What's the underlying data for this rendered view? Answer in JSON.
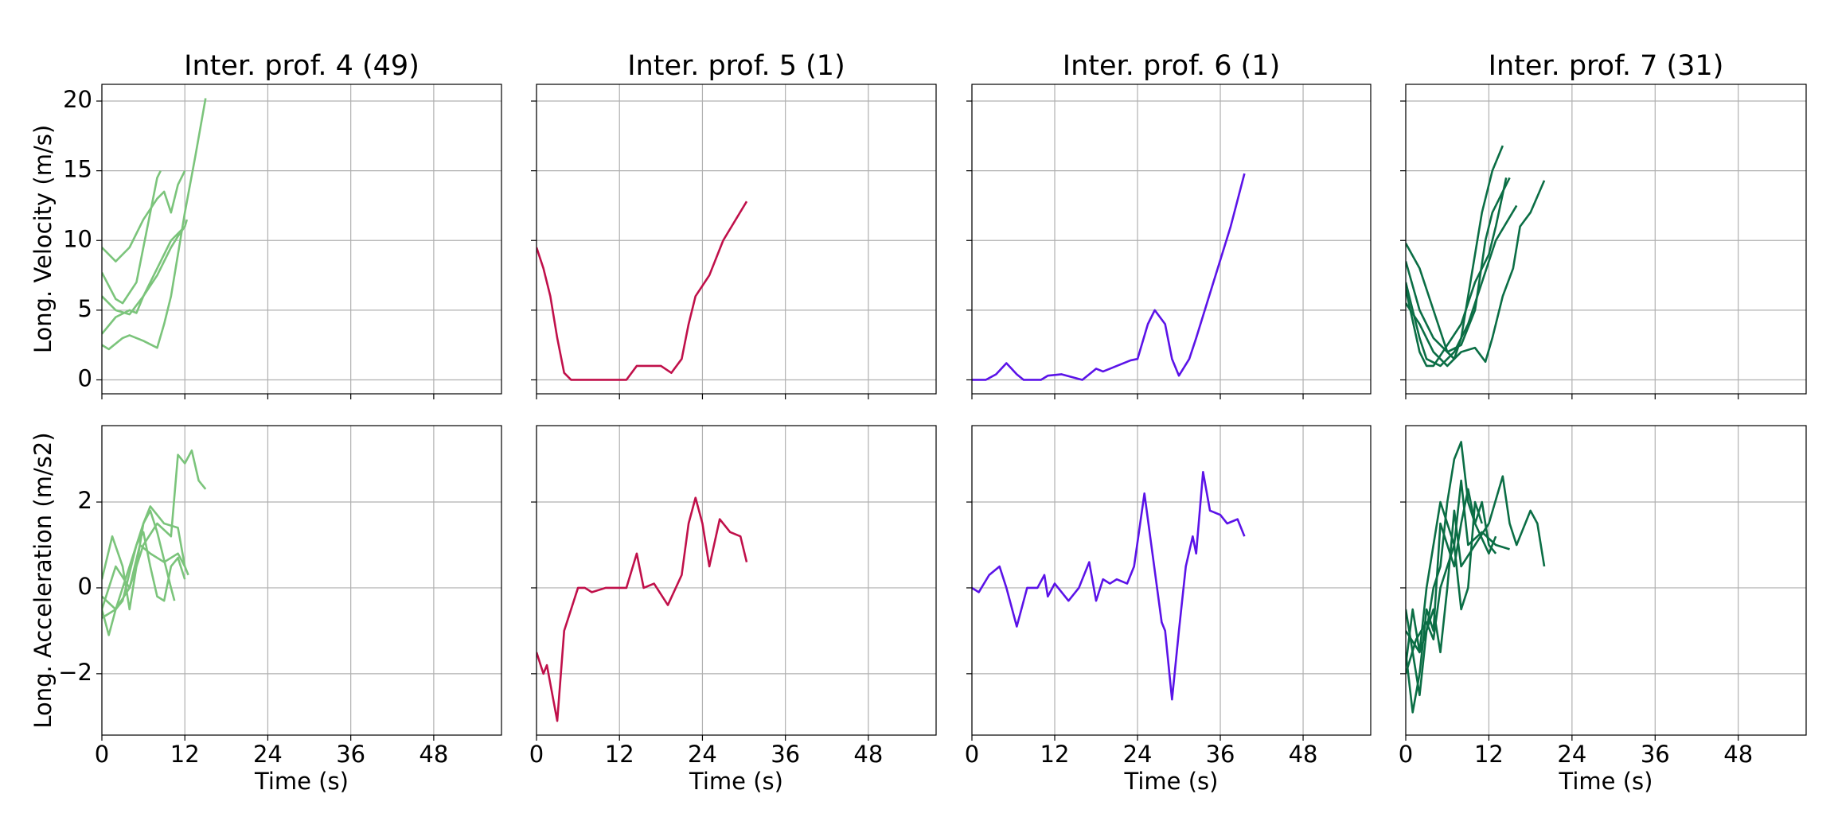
{
  "chart_data": [
    {
      "type": "line",
      "title": "Inter. prof. 4 (49)",
      "ylabel": "Long. Velocity (m/s)",
      "xlim": [
        0,
        57.8
      ],
      "ylim": [
        -1.0,
        21.2
      ],
      "xticks": [
        0,
        12,
        24,
        36,
        48
      ],
      "yticks": [
        0,
        5,
        10,
        15,
        20
      ],
      "xtick_labels": false,
      "ytick_labels": true,
      "grid": true,
      "series": [
        {
          "color": "#7bc47b",
          "x": [
            0,
            2,
            4,
            6,
            8,
            9,
            10,
            11,
            12
          ],
          "values": [
            9.5,
            8.5,
            9.5,
            11.5,
            13,
            13.5,
            12,
            14,
            15
          ]
        },
        {
          "color": "#7bc47b",
          "x": [
            0,
            2,
            3,
            5,
            6,
            7,
            8,
            8.5
          ],
          "values": [
            7.7,
            5.8,
            5.5,
            7,
            9.5,
            12,
            14.5,
            15
          ]
        },
        {
          "color": "#7bc47b",
          "x": [
            0,
            2,
            4,
            6,
            8,
            10,
            12,
            12.3
          ],
          "values": [
            6,
            5,
            4.7,
            6,
            8,
            10,
            11,
            11.5
          ]
        },
        {
          "color": "#7bc47b",
          "x": [
            0,
            2,
            4,
            5,
            6,
            8,
            10,
            11,
            12
          ],
          "values": [
            3.3,
            4.5,
            5,
            4.8,
            6,
            7.5,
            9.5,
            10.3,
            11
          ]
        },
        {
          "color": "#7bc47b",
          "x": [
            0,
            1,
            3,
            4,
            6,
            8,
            9,
            10,
            11,
            12,
            13.5,
            15
          ],
          "values": [
            2.5,
            2.2,
            3,
            3.2,
            2.8,
            2.3,
            4,
            6,
            9,
            12,
            16,
            20.2
          ]
        }
      ]
    },
    {
      "type": "line",
      "title": "Inter. prof. 5 (1)",
      "xlim": [
        0,
        57.8
      ],
      "ylim": [
        -1.0,
        21.2
      ],
      "xticks": [
        0,
        12,
        24,
        36,
        48
      ],
      "yticks": [
        0,
        5,
        10,
        15,
        20
      ],
      "xtick_labels": false,
      "ytick_labels": false,
      "grid": true,
      "series": [
        {
          "color": "#c0104a",
          "x": [
            0,
            1,
            2,
            3,
            4,
            5,
            8,
            13,
            14.5,
            18,
            19.5,
            21,
            22,
            23,
            25,
            27,
            30.4
          ],
          "values": [
            9.5,
            8,
            6,
            3,
            0.5,
            0,
            0,
            0,
            1,
            1,
            0.5,
            1.5,
            4,
            6,
            7.5,
            10,
            12.8
          ]
        }
      ]
    },
    {
      "type": "line",
      "title": "Inter. prof. 6 (1)",
      "xlim": [
        0,
        57.8
      ],
      "ylim": [
        -1.0,
        21.2
      ],
      "xticks": [
        0,
        12,
        24,
        36,
        48
      ],
      "yticks": [
        0,
        5,
        10,
        15,
        20
      ],
      "xtick_labels": false,
      "ytick_labels": false,
      "grid": true,
      "series": [
        {
          "color": "#5b13e8",
          "x": [
            0,
            2,
            3.5,
            5,
            6.5,
            7.5,
            10,
            11,
            13,
            16,
            18,
            19,
            21,
            23,
            24,
            25.5,
            26.5,
            28,
            29,
            30,
            31.5,
            32.5,
            35,
            37.5,
            39.5
          ],
          "values": [
            0,
            0,
            0.4,
            1.2,
            0.4,
            0,
            0,
            0.3,
            0.4,
            0,
            0.8,
            0.6,
            1,
            1.4,
            1.5,
            4,
            5,
            4,
            1.5,
            0.3,
            1.5,
            3,
            7,
            11,
            14.8
          ]
        }
      ]
    },
    {
      "type": "line",
      "title": "Inter. prof. 7 (31)",
      "xlim": [
        0,
        57.8
      ],
      "ylim": [
        -1.0,
        21.2
      ],
      "xticks": [
        0,
        12,
        24,
        36,
        48
      ],
      "yticks": [
        0,
        5,
        10,
        15,
        20
      ],
      "xtick_labels": false,
      "ytick_labels": false,
      "grid": true,
      "series": [
        {
          "color": "#0b6e45",
          "x": [
            0,
            2,
            4,
            6,
            7,
            8,
            9,
            10,
            11,
            12.5,
            14
          ],
          "values": [
            9.8,
            8,
            5,
            2,
            1.5,
            3,
            6,
            9,
            12,
            15,
            16.8
          ]
        },
        {
          "color": "#0b6e45",
          "x": [
            0,
            2,
            4,
            6,
            8,
            10,
            11.5,
            12.5,
            15
          ],
          "values": [
            8.5,
            5,
            3,
            2,
            2.5,
            5,
            10,
            12,
            14.5
          ]
        },
        {
          "color": "#0b6e45",
          "x": [
            0,
            1,
            2,
            3,
            5,
            7,
            9,
            11,
            13,
            16
          ],
          "values": [
            7,
            5,
            3,
            1.5,
            1,
            2,
            4,
            7,
            10,
            12.5
          ]
        },
        {
          "color": "#0b6e45",
          "x": [
            0,
            2,
            4,
            6,
            8,
            10,
            11.5,
            12.5,
            14,
            15.5,
            16.5,
            18,
            20
          ],
          "values": [
            5.5,
            4,
            2,
            1,
            2,
            2.3,
            1.3,
            3,
            6,
            8,
            11,
            12,
            14.3
          ]
        },
        {
          "color": "#0b6e45",
          "x": [
            0,
            2,
            3,
            4,
            6,
            8,
            10,
            12,
            13,
            14.5
          ],
          "values": [
            6.5,
            2,
            1,
            1,
            2.5,
            4,
            7,
            9,
            11,
            14.5
          ]
        }
      ]
    },
    {
      "type": "line",
      "xlabel": "Time (s)",
      "ylabel": "Long. Acceleration (m/s2)",
      "xlim": [
        0,
        57.8
      ],
      "ylim": [
        -3.43,
        3.78
      ],
      "xticks": [
        0,
        12,
        24,
        36,
        48
      ],
      "yticks": [
        {
          "value": -2,
          "label": "−2"
        },
        0,
        2
      ],
      "xtick_labels": true,
      "ytick_labels": true,
      "grid": true,
      "series": [
        {
          "color": "#7bc47b",
          "x": [
            0,
            2,
            4,
            6,
            8,
            10,
            11,
            12,
            13,
            14,
            15
          ],
          "values": [
            -0.5,
            0.5,
            0,
            1,
            1.5,
            1.2,
            3.1,
            2.9,
            3.2,
            2.5,
            2.3
          ]
        },
        {
          "color": "#7bc47b",
          "x": [
            0,
            1.5,
            3,
            4,
            5,
            6,
            7,
            8,
            10,
            10.5
          ],
          "values": [
            0.2,
            1.2,
            0.5,
            -0.5,
            0.5,
            1.5,
            1.8,
            1.3,
            0,
            -0.3
          ]
        },
        {
          "color": "#7bc47b",
          "x": [
            0,
            1,
            2,
            4,
            6,
            7,
            9,
            11,
            12,
            12.5
          ],
          "values": [
            -0.5,
            -1.1,
            -0.5,
            0.5,
            1.5,
            1.9,
            1.5,
            1.4,
            0.5,
            0.3
          ]
        },
        {
          "color": "#7bc47b",
          "x": [
            0,
            2,
            3,
            5,
            6,
            7,
            8,
            9,
            10,
            11,
            12
          ],
          "values": [
            -0.2,
            -0.5,
            -0.3,
            1,
            1.3,
            0.5,
            -0.2,
            -0.3,
            0.5,
            0.7,
            0.2
          ]
        },
        {
          "color": "#7bc47b",
          "x": [
            0,
            2,
            4,
            5.5,
            7,
            9,
            11,
            12
          ],
          "values": [
            -0.7,
            -0.5,
            0,
            1,
            0.8,
            0.6,
            0.8,
            0.5
          ]
        }
      ]
    },
    {
      "type": "line",
      "xlabel": "Time (s)",
      "xlim": [
        0,
        57.8
      ],
      "ylim": [
        -3.43,
        3.78
      ],
      "xticks": [
        0,
        12,
        24,
        36,
        48
      ],
      "yticks": [
        -2,
        0,
        2
      ],
      "xtick_labels": true,
      "ytick_labels": false,
      "grid": true,
      "series": [
        {
          "color": "#c0104a",
          "x": [
            0,
            1,
            1.5,
            3,
            4,
            5,
            6,
            7,
            8,
            10,
            13,
            14.5,
            15.5,
            17,
            19,
            21,
            22,
            23,
            24,
            25,
            26.5,
            28,
            29.5,
            30.4
          ],
          "values": [
            -1.5,
            -2,
            -1.8,
            -3.1,
            -1,
            -0.5,
            0,
            0,
            -0.1,
            0,
            0,
            0.8,
            0,
            0.1,
            -0.4,
            0.3,
            1.5,
            2.1,
            1.5,
            0.5,
            1.6,
            1.3,
            1.2,
            0.6
          ]
        }
      ]
    },
    {
      "type": "line",
      "xlabel": "Time (s)",
      "xlim": [
        0,
        57.8
      ],
      "ylim": [
        -3.43,
        3.78
      ],
      "xticks": [
        0,
        12,
        24,
        36,
        48
      ],
      "yticks": [
        -2,
        0,
        2
      ],
      "xtick_labels": true,
      "ytick_labels": false,
      "grid": true,
      "series": [
        {
          "color": "#5b13e8",
          "x": [
            0,
            1,
            2.5,
            4,
            5,
            6.5,
            8,
            9.5,
            10.5,
            11,
            12,
            14,
            15.5,
            17,
            18,
            19,
            20,
            21,
            22.5,
            23.5,
            25,
            26,
            27.5,
            28,
            29,
            30,
            31,
            32,
            32.5,
            33.5,
            34.5,
            36,
            37,
            38.5,
            39.5
          ],
          "values": [
            0,
            -0.1,
            0.3,
            0.5,
            0,
            -0.9,
            0,
            0,
            0.3,
            -0.2,
            0.1,
            -0.3,
            0,
            0.6,
            -0.3,
            0.2,
            0.1,
            0.2,
            0.1,
            0.5,
            2.2,
            1,
            -0.8,
            -1,
            -2.6,
            -1,
            0.5,
            1.2,
            0.8,
            2.7,
            1.8,
            1.7,
            1.5,
            1.6,
            1.2
          ]
        }
      ]
    },
    {
      "type": "line",
      "xlabel": "Time (s)",
      "xlim": [
        0,
        57.8
      ],
      "ylim": [
        -3.43,
        3.78
      ],
      "xticks": [
        0,
        12,
        24,
        36,
        48
      ],
      "yticks": [
        -2,
        0,
        2
      ],
      "xtick_labels": true,
      "ytick_labels": false,
      "grid": true,
      "series": [
        {
          "color": "#0b6e45",
          "x": [
            0,
            1,
            2,
            3,
            4,
            5,
            6,
            7,
            8,
            9,
            10,
            12,
            13
          ],
          "values": [
            -0.5,
            -1.5,
            -2.5,
            -1,
            0,
            0.5,
            2,
            3,
            3.4,
            2,
            1.5,
            0.8,
            1.2
          ]
        },
        {
          "color": "#0b6e45",
          "x": [
            0,
            1,
            2,
            3,
            4,
            5,
            6,
            7,
            8,
            9,
            10,
            11,
            12,
            13
          ],
          "values": [
            -1.5,
            -2.9,
            -2,
            -0.5,
            -1,
            1.5,
            1,
            0.5,
            1.5,
            2.3,
            1.5,
            2,
            1,
            0.8
          ]
        },
        {
          "color": "#0b6e45",
          "x": [
            0,
            1,
            2,
            3,
            4,
            5,
            6,
            7,
            8,
            9,
            10,
            11
          ],
          "values": [
            -1.8,
            -0.5,
            -1.5,
            0,
            1,
            2,
            1.5,
            1,
            -0.5,
            0,
            2,
            1.5
          ]
        },
        {
          "color": "#0b6e45",
          "x": [
            0,
            2,
            4,
            5,
            6,
            7,
            8,
            10,
            12,
            14,
            15,
            16,
            18,
            19,
            20
          ],
          "values": [
            -1,
            -1.5,
            -0.5,
            -1.5,
            0,
            1.8,
            0.5,
            1,
            1.5,
            2.6,
            1.5,
            1,
            1.8,
            1.5,
            0.5
          ]
        },
        {
          "color": "#0b6e45",
          "x": [
            0,
            1.5,
            3,
            4,
            5,
            7,
            8,
            9,
            11,
            13,
            15
          ],
          "values": [
            -2,
            -1.2,
            -0.8,
            -1.2,
            0,
            1,
            2.5,
            1,
            1.3,
            1,
            0.9
          ]
        }
      ]
    }
  ]
}
